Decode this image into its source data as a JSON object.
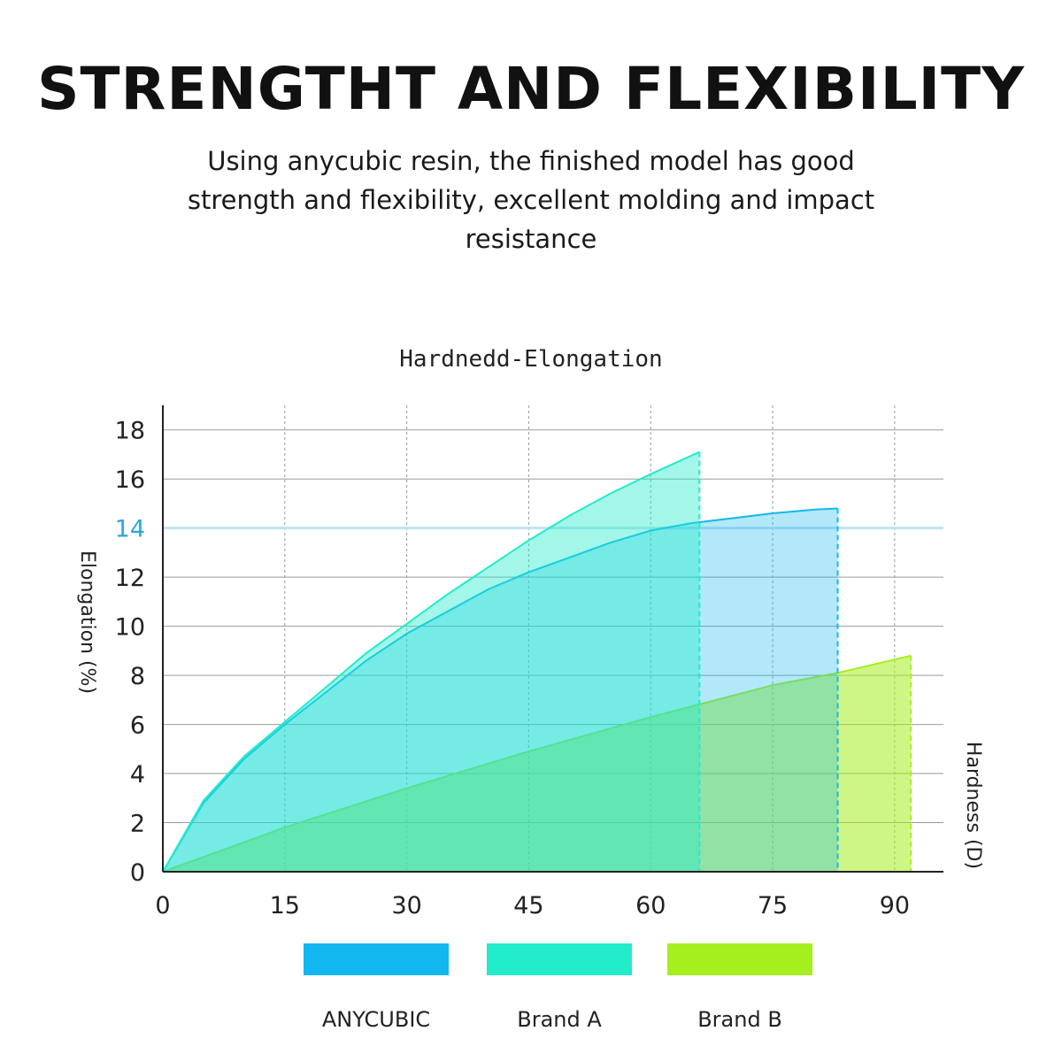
{
  "headline": "STRENGTHT AND FLEXIBILITY",
  "subtitle": "Using anycubic resin, the finished model has good strength and flexibility, excellent molding and impact resistance",
  "chart_data": {
    "type": "area",
    "title": "Hardnedd-Elongation",
    "xlabel": "Hardness (D)",
    "ylabel": "Elongation (%)",
    "xlim": [
      0,
      96
    ],
    "ylim": [
      0,
      19
    ],
    "x_ticks": [
      0,
      15,
      30,
      45,
      60,
      75,
      90
    ],
    "y_ticks": [
      0,
      2,
      4,
      6,
      8,
      10,
      12,
      14,
      16,
      18
    ],
    "highlight_y": 14,
    "grid": true,
    "legend_position": "bottom",
    "series": [
      {
        "name": "ANYCUBIC",
        "color": "#12b7f0",
        "x": [
          0,
          5,
          10,
          15,
          20,
          25,
          30,
          35,
          40,
          45,
          50,
          55,
          60,
          65,
          70,
          75,
          80,
          83
        ],
        "y": [
          0,
          2.8,
          4.6,
          6.0,
          7.3,
          8.6,
          9.7,
          10.6,
          11.5,
          12.2,
          12.8,
          13.4,
          13.9,
          14.2,
          14.4,
          14.6,
          14.75,
          14.8
        ]
      },
      {
        "name": "Brand A",
        "color": "#22ecc9",
        "x": [
          0,
          5,
          10,
          15,
          20,
          25,
          30,
          35,
          40,
          45,
          50,
          55,
          60,
          66
        ],
        "y": [
          0,
          2.9,
          4.7,
          6.1,
          7.5,
          8.9,
          10.1,
          11.3,
          12.4,
          13.5,
          14.5,
          15.4,
          16.2,
          17.1
        ]
      },
      {
        "name": "Brand B",
        "color": "#a6ef1f",
        "x": [
          0,
          15,
          30,
          45,
          60,
          75,
          83,
          92
        ],
        "y": [
          0,
          1.8,
          3.4,
          4.9,
          6.3,
          7.6,
          8.1,
          8.8
        ]
      }
    ]
  },
  "colors": {
    "grid": "#9a9a9a",
    "axis": "#222222",
    "highlight": "#bfe3f5",
    "highlight_label": "#2aa8dc",
    "anycubic_swatch": "#12b7f0",
    "brand_a_swatch": "#22ecc9",
    "brand_b_swatch": "#a6ef1f"
  }
}
